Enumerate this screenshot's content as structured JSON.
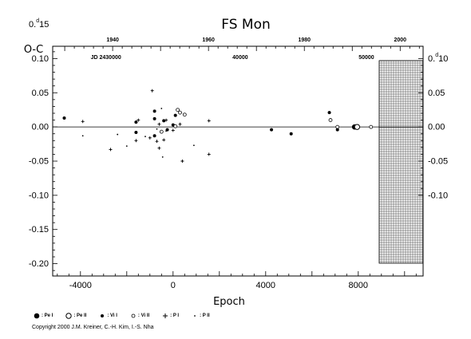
{
  "chart_data": {
    "type": "scatter",
    "title": "FS Mon",
    "ylabel": "O-C",
    "xlabel": "Epoch",
    "xlim": [
      -5200,
      10800
    ],
    "ylim": [
      -0.218,
      0.118
    ],
    "x_ticks": [
      -4000,
      0,
      4000,
      8000
    ],
    "x_tick_labels": [
      "-4000",
      "0",
      "4000",
      "8000"
    ],
    "y_ticks": [
      0.15,
      0.1,
      0.05,
      0.0,
      -0.05,
      -0.1,
      -0.15,
      -0.2
    ],
    "y_tick_labels": [
      "0.15",
      "0.10",
      "0.05",
      "0.00",
      "-0.05",
      "-0.10",
      "-0.15",
      "-0.20"
    ],
    "y_top_label_sup": "d",
    "right_ticks": [
      0.1,
      0.05,
      0.0,
      -0.05,
      -0.1
    ],
    "right_tick_labels": [
      "0.10",
      "0.05",
      "0.00",
      "-0.05",
      "-0.10"
    ],
    "right_top_label_sup": "d",
    "top_axis": {
      "year_ticks": [
        1940,
        1960,
        1980,
        2000
      ],
      "year_epochs": [
        -2610,
        1530,
        5670,
        9810
      ],
      "jd_labels": [
        "JD 2430000",
        "40000",
        "50000"
      ],
      "jd_epochs": [
        -2900,
        2900,
        8350
      ]
    },
    "shaded_region_start": 8900,
    "zero_line": 0.0,
    "series": [
      {
        "name": "Pe I",
        "symbol": "filled-circle-large",
        "points": [
          [
            7840,
            0.0
          ]
        ]
      },
      {
        "name": "Pe II",
        "symbol": "open-circle-large",
        "points": [
          [
            7950,
            0.0
          ]
        ]
      },
      {
        "name": "Vi I",
        "symbol": "filled-circle",
        "points": [
          [
            -4700,
            0.013
          ],
          [
            -1600,
            0.007
          ],
          [
            -1600,
            -0.008
          ],
          [
            -800,
            0.023
          ],
          [
            -800,
            0.012
          ],
          [
            -800,
            -0.013
          ],
          [
            -400,
            0.009
          ],
          [
            -250,
            -0.004
          ],
          [
            0,
            0.003
          ],
          [
            100,
            0.017
          ],
          [
            4250,
            -0.004
          ],
          [
            5100,
            -0.01
          ],
          [
            6750,
            0.021
          ],
          [
            7100,
            -0.004
          ],
          [
            8550,
            0.0
          ]
        ]
      },
      {
        "name": "Vi II",
        "symbol": "open-circle",
        "points": [
          [
            -500,
            -0.007
          ],
          [
            100,
            0.001
          ],
          [
            200,
            0.025
          ],
          [
            300,
            0.021
          ],
          [
            500,
            0.018
          ],
          [
            6800,
            0.01
          ],
          [
            7100,
            0.0
          ],
          [
            8550,
            0.0
          ]
        ]
      },
      {
        "name": "P I",
        "symbol": "plus",
        "points": [
          [
            -3900,
            0.008
          ],
          [
            -2700,
            -0.033
          ],
          [
            -1500,
            0.01
          ],
          [
            -900,
            0.053
          ],
          [
            -600,
            0.004
          ],
          [
            -600,
            -0.031
          ],
          [
            -300,
            0.01
          ],
          [
            -1600,
            -0.02
          ],
          [
            -1000,
            -0.016
          ],
          [
            -700,
            -0.021
          ],
          [
            -400,
            -0.019
          ],
          [
            0,
            -0.005
          ],
          [
            300,
            0.004
          ],
          [
            400,
            -0.05
          ],
          [
            1550,
            -0.04
          ],
          [
            1550,
            0.009
          ]
        ]
      },
      {
        "name": "P II",
        "symbol": "dot",
        "points": [
          [
            -3900,
            -0.013
          ],
          [
            -2400,
            -0.011
          ],
          [
            -2000,
            -0.028
          ],
          [
            -1200,
            -0.014
          ],
          [
            -500,
            0.027
          ],
          [
            -300,
            -0.006
          ],
          [
            900,
            -0.027
          ],
          [
            -700,
            -0.003
          ],
          [
            -450,
            -0.044
          ]
        ]
      }
    ]
  },
  "legend": [
    {
      "symbol": "filled-circle-large",
      "label": ": Pe I"
    },
    {
      "symbol": "open-circle-large",
      "label": ": Pe II"
    },
    {
      "symbol": "filled-circle",
      "label": ": Vi I"
    },
    {
      "symbol": "open-circle",
      "label": ": Vi II"
    },
    {
      "symbol": "plus",
      "label": ": P I"
    },
    {
      "symbol": "dot",
      "label": ": P II"
    }
  ],
  "copyright": "Copyright 2000 J.M. Kreiner, C.-H. Kim, I.-S. Nha"
}
